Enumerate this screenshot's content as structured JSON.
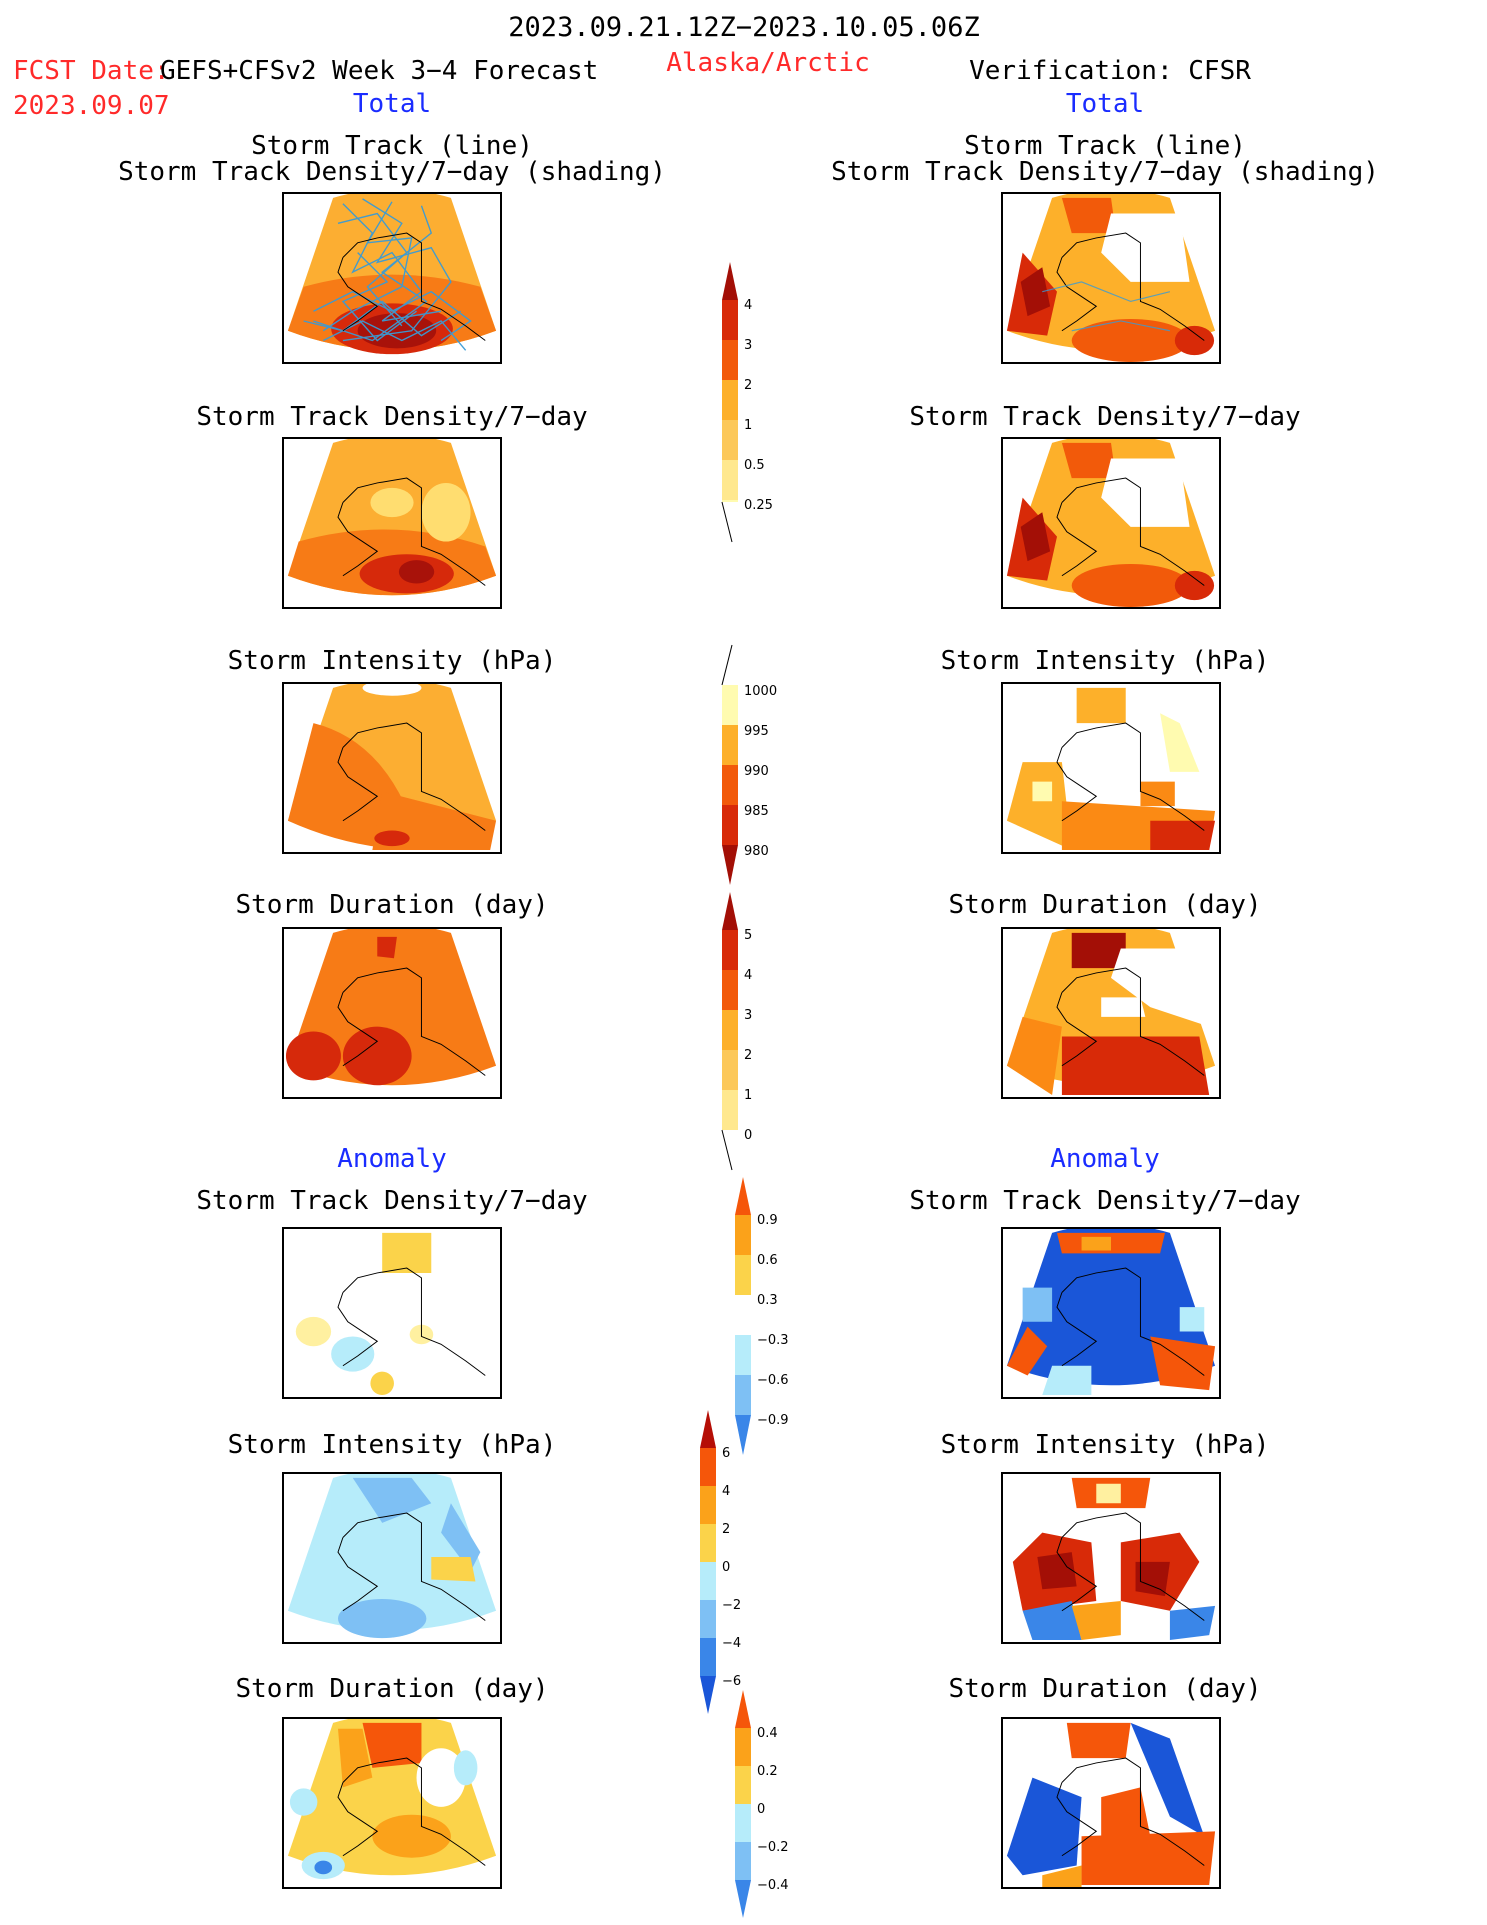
{
  "header": {
    "period": "2023.09.21.12Z−2023.10.05.06Z",
    "fcst_label": "FCST Date:",
    "fcst_model": "GEFS+CFSv2 Week 3−4 Forecast",
    "fcst_date": "2023.09.07",
    "region": "Alaska/Arctic",
    "verification": "Verification: CFSR"
  },
  "columns": {
    "left_total": "Total",
    "right_total": "Total",
    "left_anomaly": "Anomaly",
    "right_anomaly": "Anomaly"
  },
  "panel_titles": {
    "track_line": "Storm Track (line)",
    "track_density_shading": "Storm Track Density/7−day (shading)",
    "track_density": "Storm Track Density/7−day",
    "intensity": "Storm Intensity (hPa)",
    "duration": "Storm Duration (day)"
  },
  "colorbars": {
    "density_total": [
      "4",
      "3",
      "2",
      "1",
      "0.5",
      "0.25"
    ],
    "intensity_total": [
      "1000",
      "995",
      "990",
      "985",
      "980"
    ],
    "duration_total": [
      "5",
      "4",
      "3",
      "2",
      "1",
      "0"
    ],
    "density_anom": [
      "0.9",
      "0.6",
      "0.3",
      "−0.3",
      "−0.6",
      "−0.9"
    ],
    "intensity_anom": [
      "6",
      "4",
      "2",
      "0",
      "−2",
      "−4",
      "−6"
    ],
    "duration_anom": [
      "0.4",
      "0.2",
      "0",
      "−0.2",
      "−0.4"
    ]
  },
  "colors": {
    "title_red": "#ff2a2a",
    "label_blue": "#1a2cff",
    "track_line": "#3a9bd5",
    "warm_scale": [
      "#fffbb0",
      "#ffdd70",
      "#fdb02a",
      "#fb8a14",
      "#f25a0a",
      "#d82a08",
      "#a30f06"
    ],
    "diverging_scale": [
      "#1a56d8",
      "#3a86e8",
      "#7ec0f4",
      "#b6ecfa",
      "#ffffff",
      "#fff0a0",
      "#fbd34a",
      "#fba21a",
      "#f5560a",
      "#b50e06"
    ]
  }
}
